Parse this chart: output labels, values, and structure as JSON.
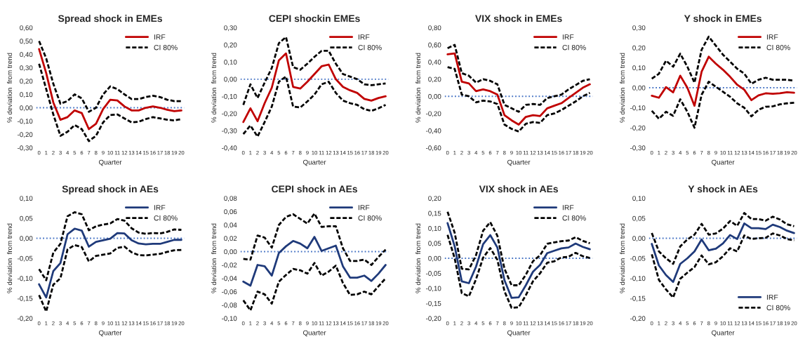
{
  "chart_data": [
    {
      "type": "line",
      "title": "Spread shock in EMEs",
      "xlabel": "Quarter",
      "ylabel": "% deviation  from trend",
      "categories": [
        "0",
        "1",
        "2",
        "3",
        "4",
        "5",
        "6",
        "7",
        "8",
        "9",
        "10",
        "11",
        "12",
        "13",
        "14",
        "15",
        "16",
        "17",
        "18",
        "19",
        "20"
      ],
      "ylim": [
        -0.3,
        0.6
      ],
      "yticks": [
        {
          "value": -0.3,
          "label": "-0,30"
        },
        {
          "value": -0.2,
          "label": "-0,20"
        },
        {
          "value": -0.1,
          "label": "-0,10"
        },
        {
          "value": 0,
          "label": "0,00"
        },
        {
          "value": 0.1,
          "label": "0,10"
        },
        {
          "value": 0.2,
          "label": "0,20"
        },
        {
          "value": 0.3,
          "label": "0,30"
        },
        {
          "value": 0.4,
          "label": "0,40"
        },
        {
          "value": 0.5,
          "label": "0,50"
        },
        {
          "value": 0.6,
          "label": "0,60"
        }
      ],
      "legend": "top right",
      "grid": false,
      "ref_lines": [
        {
          "axis": "y",
          "value": 0,
          "color": "#4472c4",
          "line_style": "dotted"
        }
      ],
      "series": [
        {
          "name": "IRF",
          "color": "#c00000",
          "line_style": "solid",
          "values": [
            0.44,
            0.26,
            0.04,
            -0.09,
            -0.07,
            -0.02,
            -0.04,
            -0.16,
            -0.12,
            -0.01,
            0.06,
            0.055,
            0.01,
            -0.02,
            -0.02,
            0.0,
            0.01,
            0.0,
            -0.015,
            -0.025,
            -0.02
          ]
        },
        {
          "name": "CI 80%",
          "color": "#000000",
          "line_style": "dashed",
          "values": [
            0.5,
            0.37,
            0.18,
            0.03,
            0.05,
            0.1,
            0.07,
            -0.03,
            0.0,
            0.1,
            0.16,
            0.14,
            0.1,
            0.065,
            0.065,
            0.08,
            0.09,
            0.08,
            0.06,
            0.05,
            0.05
          ]
        },
        {
          "color": "#000000",
          "line_style": "dashed",
          "values": [
            0.33,
            0.14,
            -0.05,
            -0.21,
            -0.18,
            -0.13,
            -0.16,
            -0.25,
            -0.21,
            -0.11,
            -0.055,
            -0.05,
            -0.08,
            -0.11,
            -0.105,
            -0.085,
            -0.07,
            -0.08,
            -0.09,
            -0.095,
            -0.085
          ]
        }
      ]
    },
    {
      "type": "line",
      "title": "CEPI shockin EMEs",
      "xlabel": "Quarter",
      "ylabel": "% deviation  from trend",
      "categories": [
        "0",
        "1",
        "2",
        "3",
        "4",
        "5",
        "6",
        "7",
        "8",
        "9",
        "10",
        "11",
        "12",
        "13",
        "14",
        "15",
        "16",
        "17",
        "18",
        "19",
        "20"
      ],
      "ylim": [
        -0.4,
        0.3
      ],
      "yticks": [
        {
          "value": -0.4,
          "label": "-0,40"
        },
        {
          "value": -0.3,
          "label": "-0,30"
        },
        {
          "value": -0.2,
          "label": "-0,20"
        },
        {
          "value": -0.1,
          "label": "-0,10"
        },
        {
          "value": 0,
          "label": "0,00"
        },
        {
          "value": 0.1,
          "label": "0,10"
        },
        {
          "value": 0.2,
          "label": "0,20"
        },
        {
          "value": 0.3,
          "label": "0,30"
        }
      ],
      "legend": "top right",
      "grid": false,
      "ref_lines": [
        {
          "axis": "y",
          "value": 0,
          "color": "#4472c4",
          "line_style": "dotted"
        }
      ],
      "series": [
        {
          "name": "IRF",
          "color": "#c00000",
          "line_style": "solid",
          "values": [
            -0.25,
            -0.17,
            -0.245,
            -0.14,
            -0.05,
            0.11,
            0.15,
            -0.045,
            -0.055,
            -0.015,
            0.03,
            0.075,
            0.085,
            0.0,
            -0.045,
            -0.065,
            -0.08,
            -0.115,
            -0.125,
            -0.11,
            -0.1
          ]
        },
        {
          "name": "CI 80%",
          "color": "#000000",
          "line_style": "dashed",
          "values": [
            -0.15,
            -0.03,
            -0.11,
            -0.02,
            0.065,
            0.21,
            0.245,
            0.07,
            0.055,
            0.09,
            0.13,
            0.165,
            0.165,
            0.09,
            0.03,
            0.015,
            0.0,
            -0.03,
            -0.035,
            -0.03,
            -0.025
          ]
        },
        {
          "color": "#000000",
          "line_style": "dashed",
          "values": [
            -0.32,
            -0.27,
            -0.335,
            -0.25,
            -0.16,
            -0.015,
            0.015,
            -0.16,
            -0.165,
            -0.13,
            -0.09,
            -0.03,
            -0.015,
            -0.08,
            -0.125,
            -0.14,
            -0.15,
            -0.175,
            -0.185,
            -0.17,
            -0.15
          ]
        }
      ]
    },
    {
      "type": "line",
      "title": "VIX shock in EMEs",
      "xlabel": "Quarter",
      "ylabel": "% deviation  from trend",
      "categories": [
        "0",
        "1",
        "2",
        "3",
        "4",
        "5",
        "6",
        "7",
        "8",
        "9",
        "10",
        "11",
        "12",
        "13",
        "14",
        "15",
        "16",
        "17",
        "18",
        "19",
        "20"
      ],
      "ylim": [
        -0.6,
        0.8
      ],
      "yticks": [
        {
          "value": -0.6,
          "label": "-0,60"
        },
        {
          "value": -0.4,
          "label": "-0,40"
        },
        {
          "value": -0.2,
          "label": "-0,20"
        },
        {
          "value": 0,
          "label": "0,00"
        },
        {
          "value": 0.2,
          "label": "0,20"
        },
        {
          "value": 0.4,
          "label": "0,40"
        },
        {
          "value": 0.6,
          "label": "0,60"
        },
        {
          "value": 0.8,
          "label": "0,80"
        }
      ],
      "legend": "top right",
      "grid": false,
      "ref_lines": [
        {
          "axis": "y",
          "value": 0,
          "color": "#4472c4",
          "line_style": "dotted"
        }
      ],
      "series": [
        {
          "name": "IRF",
          "color": "#c00000",
          "line_style": "solid",
          "values": [
            0.49,
            0.5,
            0.17,
            0.15,
            0.06,
            0.08,
            0.06,
            0.02,
            -0.22,
            -0.28,
            -0.33,
            -0.24,
            -0.22,
            -0.23,
            -0.14,
            -0.11,
            -0.08,
            -0.02,
            0.04,
            0.1,
            0.14
          ]
        },
        {
          "name": "CI 80%",
          "color": "#000000",
          "line_style": "dashed",
          "values": [
            0.56,
            0.6,
            0.27,
            0.24,
            0.16,
            0.2,
            0.18,
            0.14,
            -0.1,
            -0.14,
            -0.18,
            -0.1,
            -0.09,
            -0.1,
            -0.02,
            0.0,
            0.02,
            0.08,
            0.13,
            0.18,
            0.2
          ]
        },
        {
          "color": "#000000",
          "line_style": "dashed",
          "values": [
            0.34,
            0.32,
            0.02,
            0.0,
            -0.07,
            -0.05,
            -0.06,
            -0.09,
            -0.33,
            -0.38,
            -0.41,
            -0.32,
            -0.3,
            -0.31,
            -0.22,
            -0.2,
            -0.16,
            -0.11,
            -0.06,
            0.0,
            0.04
          ]
        }
      ]
    },
    {
      "type": "line",
      "title": "Y shock in EMEs",
      "xlabel": "Quarter",
      "ylabel": "% deviation  from trend",
      "categories": [
        "0",
        "1",
        "2",
        "3",
        "4",
        "5",
        "6",
        "7",
        "8",
        "9",
        "10",
        "11",
        "12",
        "13",
        "14",
        "15",
        "16",
        "17",
        "18",
        "19",
        "20"
      ],
      "ylim": [
        -0.3,
        0.3
      ],
      "yticks": [
        {
          "value": -0.3,
          "label": "-0,30"
        },
        {
          "value": -0.2,
          "label": "-0,20"
        },
        {
          "value": -0.1,
          "label": "-0,10"
        },
        {
          "value": 0,
          "label": "0,00"
        },
        {
          "value": 0.1,
          "label": "0,10"
        },
        {
          "value": 0.2,
          "label": "0,20"
        },
        {
          "value": 0.3,
          "label": "0,30"
        }
      ],
      "legend": "top right",
      "grid": false,
      "ref_lines": [
        {
          "axis": "y",
          "value": 0,
          "color": "#4472c4",
          "line_style": "dotted"
        }
      ],
      "series": [
        {
          "name": "IRF",
          "color": "#c00000",
          "line_style": "solid",
          "values": [
            -0.04,
            -0.05,
            0.003,
            -0.023,
            0.06,
            0.0,
            -0.09,
            0.08,
            0.155,
            0.12,
            0.09,
            0.055,
            0.015,
            -0.01,
            -0.062,
            -0.038,
            -0.028,
            -0.03,
            -0.028,
            -0.022,
            -0.025
          ]
        },
        {
          "name": "CI 80%",
          "color": "#000000",
          "line_style": "dashed",
          "values": [
            0.045,
            0.07,
            0.135,
            0.105,
            0.17,
            0.105,
            0.025,
            0.19,
            0.255,
            0.21,
            0.165,
            0.13,
            0.095,
            0.07,
            0.02,
            0.04,
            0.05,
            0.04,
            0.04,
            0.04,
            0.035
          ]
        },
        {
          "color": "#000000",
          "line_style": "dashed",
          "values": [
            -0.115,
            -0.155,
            -0.12,
            -0.14,
            -0.058,
            -0.12,
            -0.2,
            -0.035,
            0.03,
            0.005,
            -0.02,
            -0.045,
            -0.078,
            -0.1,
            -0.143,
            -0.11,
            -0.095,
            -0.093,
            -0.083,
            -0.078,
            -0.075
          ]
        }
      ]
    },
    {
      "type": "line",
      "title": "Spread shock in AEs",
      "xlabel": "Quarter",
      "ylabel": "% deviation  from trend",
      "categories": [
        "0",
        "1",
        "2",
        "3",
        "4",
        "5",
        "6",
        "7",
        "8",
        "9",
        "10",
        "11",
        "12",
        "13",
        "14",
        "15",
        "16",
        "17",
        "18",
        "19",
        "20"
      ],
      "ylim": [
        -0.2,
        0.1
      ],
      "yticks": [
        {
          "value": -0.2,
          "label": "-0,20"
        },
        {
          "value": -0.15,
          "label": "-0,15"
        },
        {
          "value": -0.1,
          "label": "-0,10"
        },
        {
          "value": -0.05,
          "label": "-0,05"
        },
        {
          "value": 0,
          "label": "0,00"
        },
        {
          "value": 0.05,
          "label": "0,05"
        },
        {
          "value": 0.1,
          "label": "0,10"
        }
      ],
      "legend": "top right",
      "grid": false,
      "ref_lines": [
        {
          "axis": "y",
          "value": 0,
          "color": "#4472c4",
          "line_style": "dotted"
        }
      ],
      "series": [
        {
          "name": "IRF",
          "color": "#1f3a7a",
          "line_style": "solid",
          "values": [
            -0.115,
            -0.148,
            -0.082,
            -0.062,
            0.01,
            0.024,
            0.019,
            -0.021,
            -0.009,
            -0.005,
            -0.001,
            0.013,
            0.012,
            -0.005,
            -0.013,
            -0.015,
            -0.014,
            -0.014,
            -0.009,
            -0.004,
            -0.004
          ]
        },
        {
          "name": "CI 80%",
          "color": "#000000",
          "line_style": "dashed",
          "values": [
            -0.077,
            -0.105,
            -0.036,
            -0.014,
            0.055,
            0.065,
            0.06,
            0.02,
            0.03,
            0.034,
            0.037,
            0.048,
            0.044,
            0.025,
            0.014,
            0.011,
            0.013,
            0.012,
            0.016,
            0.022,
            0.021
          ]
        },
        {
          "color": "#000000",
          "line_style": "dashed",
          "values": [
            -0.142,
            -0.183,
            -0.116,
            -0.1,
            -0.028,
            -0.017,
            -0.022,
            -0.058,
            -0.044,
            -0.041,
            -0.038,
            -0.024,
            -0.021,
            -0.035,
            -0.042,
            -0.043,
            -0.041,
            -0.039,
            -0.034,
            -0.03,
            -0.029
          ]
        }
      ]
    },
    {
      "type": "line",
      "title": "CEPI shock in AEs",
      "xlabel": "Quarter",
      "ylabel": "% deviation  from trend",
      "categories": [
        "0",
        "1",
        "2",
        "3",
        "4",
        "5",
        "6",
        "7",
        "8",
        "9",
        "10",
        "11",
        "12",
        "13",
        "14",
        "15",
        "16",
        "17",
        "18",
        "19",
        "20"
      ],
      "ylim": [
        -0.1,
        0.08
      ],
      "yticks": [
        {
          "value": -0.1,
          "label": "-0,10"
        },
        {
          "value": -0.08,
          "label": "-0,08"
        },
        {
          "value": -0.06,
          "label": "-0,06"
        },
        {
          "value": -0.04,
          "label": "-0,04"
        },
        {
          "value": -0.02,
          "label": "-0,02"
        },
        {
          "value": 0,
          "label": "0,00"
        },
        {
          "value": 0.02,
          "label": "0,02"
        },
        {
          "value": 0.04,
          "label": "0,04"
        },
        {
          "value": 0.06,
          "label": "0,06"
        },
        {
          "value": 0.08,
          "label": "0,08"
        }
      ],
      "legend": "top right",
      "grid": false,
      "ref_lines": [
        {
          "axis": "y",
          "value": 0,
          "color": "#4472c4",
          "line_style": "dotted"
        }
      ],
      "series": [
        {
          "name": "IRF",
          "color": "#1f3a7a",
          "line_style": "solid",
          "values": [
            -0.045,
            -0.051,
            -0.02,
            -0.022,
            -0.036,
            -0.002,
            0.008,
            0.016,
            0.012,
            0.005,
            0.022,
            0.001,
            0.005,
            0.009,
            -0.022,
            -0.039,
            -0.039,
            -0.036,
            -0.044,
            -0.033,
            -0.02
          ]
        },
        {
          "name": "CI 80%",
          "color": "#000000",
          "line_style": "dashed",
          "values": [
            -0.011,
            -0.012,
            0.024,
            0.021,
            0.006,
            0.04,
            0.052,
            0.056,
            0.049,
            0.042,
            0.057,
            0.037,
            0.038,
            0.038,
            0.005,
            -0.014,
            -0.014,
            -0.012,
            -0.02,
            -0.008,
            0.003
          ]
        },
        {
          "color": "#000000",
          "line_style": "dashed",
          "values": [
            -0.073,
            -0.088,
            -0.06,
            -0.064,
            -0.078,
            -0.045,
            -0.035,
            -0.026,
            -0.028,
            -0.033,
            -0.017,
            -0.036,
            -0.03,
            -0.021,
            -0.047,
            -0.065,
            -0.064,
            -0.06,
            -0.064,
            -0.052,
            -0.04
          ]
        }
      ]
    },
    {
      "type": "line",
      "title": "VIX shock in AEs",
      "xlabel": "Quarter",
      "ylabel": "% deviation  from trend",
      "categories": [
        "0",
        "1",
        "2",
        "3",
        "4",
        "5",
        "6",
        "7",
        "8",
        "9",
        "10",
        "11",
        "12",
        "13",
        "14",
        "15",
        "16",
        "17",
        "18",
        "19",
        "20"
      ],
      "ylim": [
        -0.2,
        0.2
      ],
      "yticks": [
        {
          "value": -0.2,
          "label": "-0,20"
        },
        {
          "value": -0.15,
          "label": "-0,15"
        },
        {
          "value": -0.1,
          "label": "-0,10"
        },
        {
          "value": -0.05,
          "label": "-0,05"
        },
        {
          "value": 0,
          "label": "0,00"
        },
        {
          "value": 0.05,
          "label": "0,05"
        },
        {
          "value": 0.1,
          "label": "0,10"
        },
        {
          "value": 0.15,
          "label": "0,15"
        },
        {
          "value": 0.2,
          "label": "0,20"
        }
      ],
      "legend": "top right",
      "grid": false,
      "ref_lines": [
        {
          "axis": "y",
          "value": 0,
          "color": "#4472c4",
          "line_style": "dotted"
        }
      ],
      "series": [
        {
          "name": "IRF",
          "color": "#1f3a7a",
          "line_style": "solid",
          "values": [
            0.117,
            0.04,
            -0.077,
            -0.083,
            -0.028,
            0.047,
            0.077,
            0.036,
            -0.073,
            -0.132,
            -0.13,
            -0.09,
            -0.045,
            -0.022,
            0.017,
            0.025,
            0.033,
            0.036,
            0.049,
            0.038,
            0.03
          ]
        },
        {
          "name": "CI 80%",
          "color": "#000000",
          "line_style": "dashed",
          "values": [
            0.155,
            0.085,
            -0.035,
            -0.037,
            0.01,
            0.092,
            0.12,
            0.075,
            -0.035,
            -0.09,
            -0.09,
            -0.055,
            -0.01,
            0.01,
            0.048,
            0.053,
            0.057,
            0.059,
            0.07,
            0.058,
            0.05
          ]
        },
        {
          "color": "#000000",
          "line_style": "dashed",
          "values": [
            0.078,
            0.0,
            -0.116,
            -0.127,
            -0.07,
            0.002,
            0.034,
            -0.005,
            -0.11,
            -0.165,
            -0.163,
            -0.123,
            -0.077,
            -0.05,
            -0.015,
            -0.01,
            0.003,
            0.005,
            0.018,
            0.007,
            0.001
          ]
        }
      ]
    },
    {
      "type": "line",
      "title": "Y shock in AEs",
      "xlabel": "Quarter",
      "ylabel": "% deviation  from trend",
      "categories": [
        "0",
        "1",
        "2",
        "3",
        "4",
        "5",
        "6",
        "7",
        "8",
        "9",
        "10",
        "11",
        "12",
        "13",
        "14",
        "15",
        "16",
        "17",
        "18",
        "19",
        "20"
      ],
      "ylim": [
        -0.2,
        0.1
      ],
      "yticks": [
        {
          "value": -0.2,
          "label": "-0,20"
        },
        {
          "value": -0.15,
          "label": "-0,15"
        },
        {
          "value": -0.1,
          "label": "-0,10"
        },
        {
          "value": -0.05,
          "label": "-0,05"
        },
        {
          "value": 0,
          "label": "0,00"
        },
        {
          "value": 0.05,
          "label": "0,05"
        },
        {
          "value": 0.1,
          "label": "0,10"
        }
      ],
      "legend": "bottom right",
      "grid": false,
      "ref_lines": [
        {
          "axis": "y",
          "value": 0,
          "color": "#4472c4",
          "line_style": "dotted"
        }
      ],
      "series": [
        {
          "name": "IRF",
          "color": "#1f3a7a",
          "line_style": "solid",
          "values": [
            -0.014,
            -0.068,
            -0.092,
            -0.109,
            -0.064,
            -0.05,
            -0.033,
            -0.003,
            -0.03,
            -0.026,
            -0.013,
            0.008,
            -0.002,
            0.037,
            0.025,
            0.025,
            0.023,
            0.034,
            0.028,
            0.019,
            0.013
          ]
        },
        {
          "name": "CI 80%",
          "color": "#000000",
          "line_style": "dashed",
          "values": [
            0.013,
            -0.033,
            -0.05,
            -0.064,
            -0.02,
            -0.003,
            0.009,
            0.036,
            0.009,
            0.012,
            0.024,
            0.043,
            0.031,
            0.063,
            0.048,
            0.048,
            0.044,
            0.054,
            0.047,
            0.035,
            0.03
          ]
        },
        {
          "color": "#000000",
          "line_style": "dashed",
          "values": [
            -0.04,
            -0.104,
            -0.128,
            -0.148,
            -0.101,
            -0.086,
            -0.072,
            -0.043,
            -0.065,
            -0.06,
            -0.045,
            -0.025,
            -0.033,
            0.007,
            -0.002,
            0.0,
            0.001,
            0.012,
            0.007,
            -0.002,
            -0.005
          ]
        }
      ]
    }
  ]
}
